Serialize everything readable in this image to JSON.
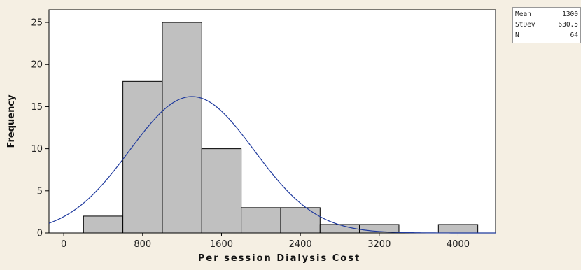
{
  "chart_data": {
    "type": "bar",
    "subtype": "histogram",
    "xlabel": "Per session Dialysis Cost",
    "ylabel": "Frequency",
    "xlim": [
      -150,
      4380
    ],
    "ylim": [
      0,
      26.5
    ],
    "x_ticks": [
      0,
      800,
      1600,
      2400,
      3200,
      4000
    ],
    "y_ticks": [
      0,
      5,
      10,
      15,
      20,
      25
    ],
    "bins": [
      {
        "x0": 200,
        "x1": 600,
        "value": 2
      },
      {
        "x0": 600,
        "x1": 1000,
        "value": 18
      },
      {
        "x0": 1000,
        "x1": 1400,
        "value": 25
      },
      {
        "x0": 1400,
        "x1": 1800,
        "value": 10
      },
      {
        "x0": 1800,
        "x1": 2200,
        "value": 3
      },
      {
        "x0": 2200,
        "x1": 2600,
        "value": 3
      },
      {
        "x0": 2600,
        "x1": 3000,
        "value": 1
      },
      {
        "x0": 3000,
        "x1": 3400,
        "value": 1
      },
      {
        "x0": 3400,
        "x1": 3800,
        "value": 0
      },
      {
        "x0": 3800,
        "x1": 4200,
        "value": 1
      }
    ],
    "normal_curve": {
      "mean": 1300,
      "stdev": 630.5,
      "n": 64,
      "bin_width": 400,
      "color": "#1f3a9e"
    },
    "bar_fill": "#c0c0c0",
    "bar_stroke": "#000000",
    "plot_background": "#ffffff",
    "grid": false
  },
  "stats": {
    "rows": [
      {
        "label": "Mean",
        "value": "1300"
      },
      {
        "label": "StDev",
        "value": "630.5"
      },
      {
        "label": "N",
        "value": "64"
      }
    ]
  }
}
